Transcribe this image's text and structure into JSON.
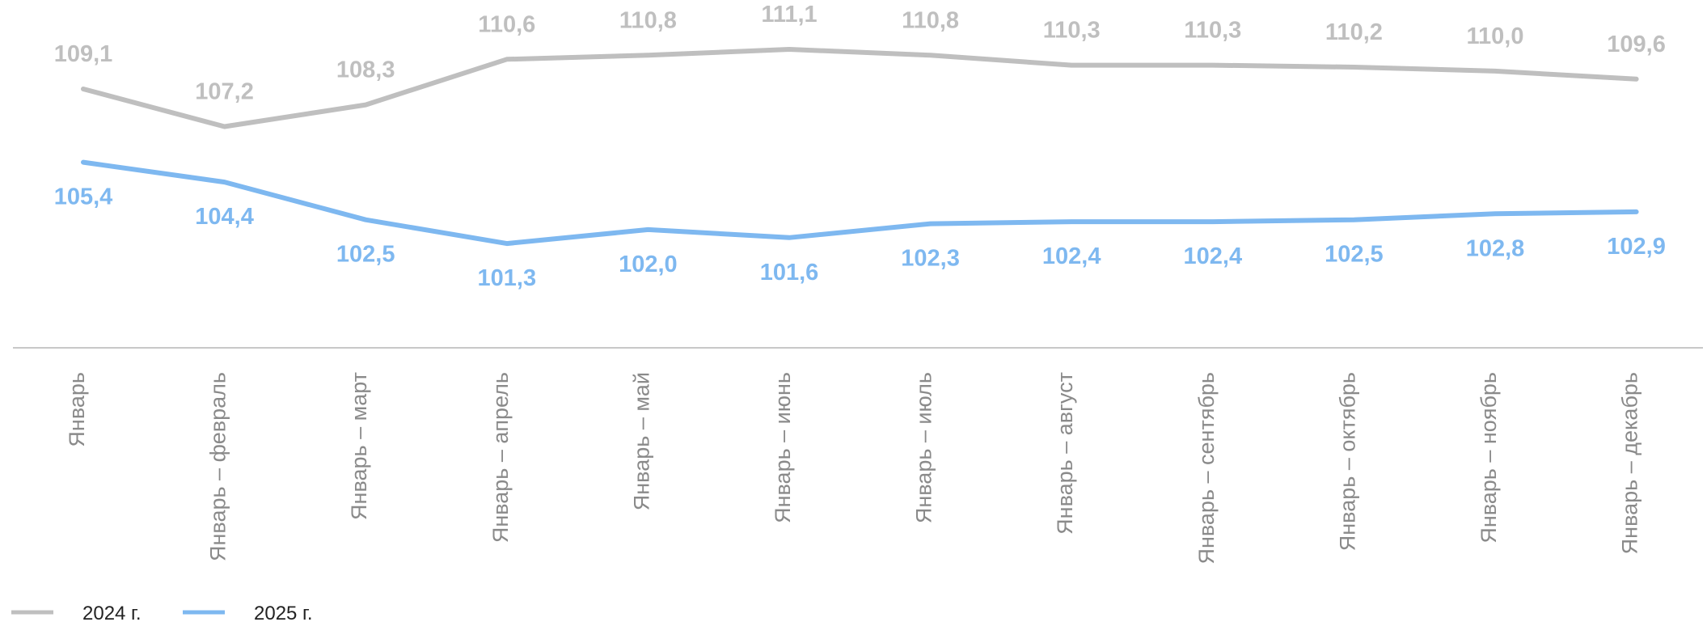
{
  "chart_data": {
    "type": "line",
    "categories": [
      "Январь",
      "Январь – февраль",
      "Январь – март",
      "Январь – апрель",
      "Январь – май",
      "Январь – июнь",
      "Январь – июль",
      "Январь – август",
      "Январь – сентябрь",
      "Январь – октябрь",
      "Январь – ноябрь",
      "Январь – декабрь"
    ],
    "series": [
      {
        "name": "2024 г.",
        "color": "#bfbfbf",
        "values": [
          109.1,
          107.2,
          108.3,
          110.6,
          110.8,
          111.1,
          110.8,
          110.3,
          110.3,
          110.2,
          110.0,
          109.6
        ],
        "labels": [
          "109,1",
          "107,2",
          "108,3",
          "110,6",
          "110,8",
          "111,1",
          "110,8",
          "110,3",
          "110,3",
          "110,2",
          "110,0",
          "109,6"
        ]
      },
      {
        "name": "2025 г.",
        "color": "#7eb8f0",
        "values": [
          105.4,
          104.4,
          102.5,
          101.3,
          102.0,
          101.6,
          102.3,
          102.4,
          102.4,
          102.5,
          102.8,
          102.9
        ],
        "labels": [
          "105,4",
          "104,4",
          "102,5",
          "101,3",
          "102,0",
          "101,6",
          "102,3",
          "102,4",
          "102,4",
          "102,5",
          "102,8",
          "102,9"
        ]
      }
    ],
    "legend_position": "bottom-left",
    "grid": false
  }
}
